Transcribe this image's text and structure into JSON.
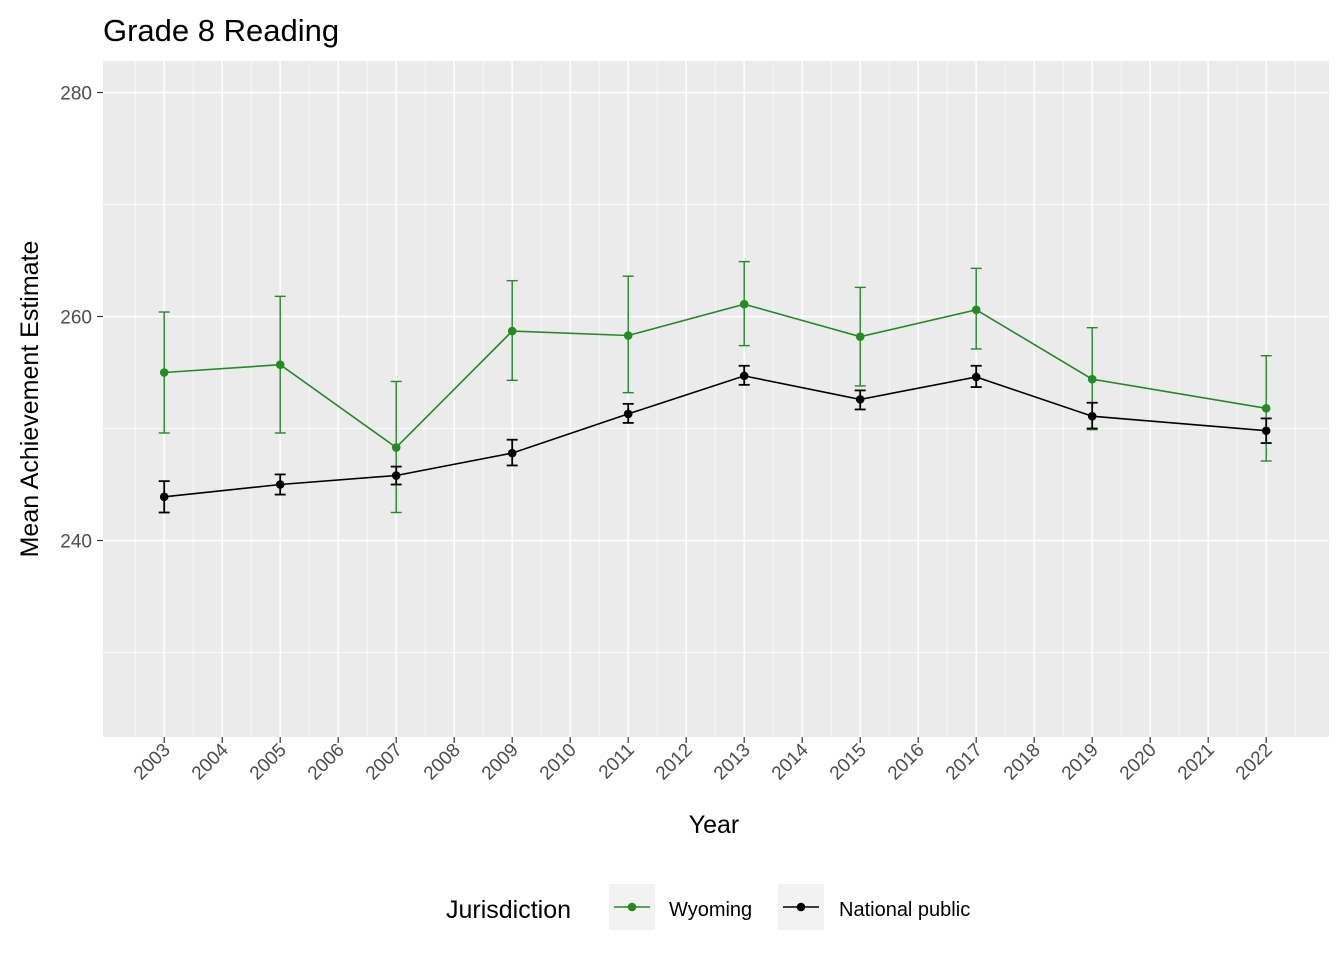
{
  "chart_data": {
    "type": "line",
    "title": "Grade 8 Reading",
    "xlabel": "Year",
    "ylabel": "Mean Achievement Estimate",
    "x_ticks": [
      "2003",
      "2004",
      "2005",
      "2006",
      "2007",
      "2008",
      "2009",
      "2010",
      "2011",
      "2012",
      "2013",
      "2014",
      "2015",
      "2016",
      "2017",
      "2018",
      "2019",
      "2020",
      "2021",
      "2022"
    ],
    "y_ticks": [
      240,
      260,
      280
    ],
    "ylim": [
      223,
      283
    ],
    "grid": true,
    "legend": {
      "title": "Jurisdiction",
      "position": "bottom",
      "items": [
        "Wyoming",
        "National public"
      ]
    },
    "series": [
      {
        "name": "Wyoming",
        "color": "#228b22",
        "points": [
          {
            "x": "2003",
            "y": 255.0,
            "lo": 249.6,
            "hi": 260.4
          },
          {
            "x": "2005",
            "y": 255.7,
            "lo": 249.6,
            "hi": 261.8
          },
          {
            "x": "2007",
            "y": 248.3,
            "lo": 242.5,
            "hi": 254.2
          },
          {
            "x": "2009",
            "y": 258.7,
            "lo": 254.3,
            "hi": 263.2
          },
          {
            "x": "2011",
            "y": 258.3,
            "lo": 253.2,
            "hi": 263.6
          },
          {
            "x": "2013",
            "y": 261.1,
            "lo": 257.4,
            "hi": 264.9
          },
          {
            "x": "2015",
            "y": 258.2,
            "lo": 253.8,
            "hi": 262.6
          },
          {
            "x": "2017",
            "y": 260.6,
            "lo": 257.1,
            "hi": 264.3
          },
          {
            "x": "2019",
            "y": 254.4,
            "lo": 249.9,
            "hi": 259.0
          },
          {
            "x": "2022",
            "y": 251.8,
            "lo": 247.1,
            "hi": 256.5
          }
        ]
      },
      {
        "name": "National public",
        "color": "#000000",
        "points": [
          {
            "x": "2003",
            "y": 243.9,
            "lo": 242.5,
            "hi": 245.3
          },
          {
            "x": "2005",
            "y": 245.0,
            "lo": 244.1,
            "hi": 245.9
          },
          {
            "x": "2007",
            "y": 245.8,
            "lo": 245.0,
            "hi": 246.6
          },
          {
            "x": "2009",
            "y": 247.8,
            "lo": 246.7,
            "hi": 249.0
          },
          {
            "x": "2011",
            "y": 251.3,
            "lo": 250.5,
            "hi": 252.2
          },
          {
            "x": "2013",
            "y": 254.7,
            "lo": 253.9,
            "hi": 255.6
          },
          {
            "x": "2015",
            "y": 252.6,
            "lo": 251.7,
            "hi": 253.4
          },
          {
            "x": "2017",
            "y": 254.6,
            "lo": 253.7,
            "hi": 255.6
          },
          {
            "x": "2019",
            "y": 251.1,
            "lo": 250.0,
            "hi": 252.3
          },
          {
            "x": "2022",
            "y": 249.8,
            "lo": 248.7,
            "hi": 250.9
          }
        ]
      }
    ]
  }
}
